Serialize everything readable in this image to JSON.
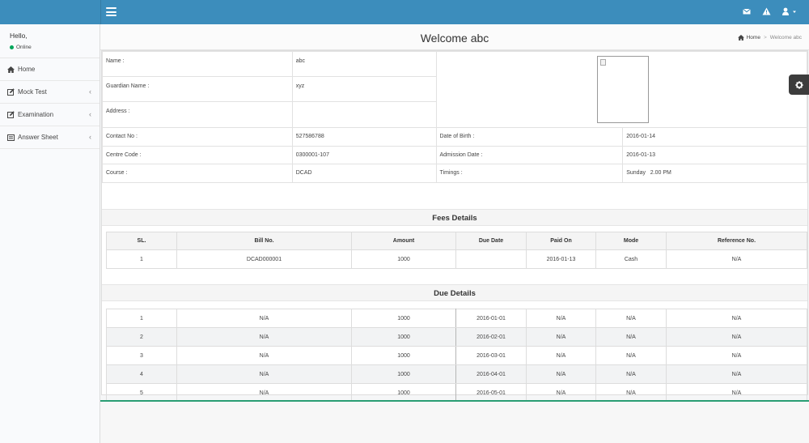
{
  "user": {
    "greeting": "Hello,",
    "status": "Online"
  },
  "sidebar": {
    "items": [
      {
        "label": "Home",
        "icon": "home-icon"
      },
      {
        "label": "Mock Test",
        "icon": "edit-icon",
        "has_submenu": true
      },
      {
        "label": "Examination",
        "icon": "edit-icon",
        "has_submenu": true
      },
      {
        "label": "Answer Sheet",
        "icon": "list-icon",
        "has_submenu": true
      }
    ]
  },
  "header": {
    "title": "Welcome  abc"
  },
  "breadcrumb": {
    "home": "Home",
    "current": "Welcome abc"
  },
  "profile": {
    "name_label": "Name :",
    "name": "abc",
    "guardian_label": "Guardian Name :",
    "guardian": "xyz",
    "address_label": "Address :",
    "address": "",
    "contact_label": "Contact No :",
    "contact": "527586788",
    "dob_label": "Date of Birth :",
    "dob": "2016-01-14",
    "centre_label": "Centre Code :",
    "centre": "0300001-107",
    "admission_label": "Admission Date :",
    "admission": "2016-01-13",
    "course_label": "Course :",
    "course": "DCAD",
    "timings_label": "Timings :",
    "timings": "Sunday   2.00 PM"
  },
  "fees": {
    "title": "Fees Details",
    "columns": [
      "SL.",
      "Bill No.",
      "Amount",
      "Due Date",
      "Paid On",
      "Mode",
      "Reference No."
    ],
    "rows": [
      [
        "1",
        "DCAD000001",
        "1000",
        "",
        "2016-01-13",
        "Cash",
        "N/A"
      ]
    ]
  },
  "dues": {
    "title": "Due Details",
    "rows": [
      [
        "1",
        "N/A",
        "1000",
        "2016-01-01",
        "N/A",
        "N/A",
        "N/A"
      ],
      [
        "2",
        "N/A",
        "1000",
        "2016-02-01",
        "N/A",
        "N/A",
        "N/A"
      ],
      [
        "3",
        "N/A",
        "1000",
        "2016-03-01",
        "N/A",
        "N/A",
        "N/A"
      ],
      [
        "4",
        "N/A",
        "1000",
        "2016-04-01",
        "N/A",
        "N/A",
        "N/A"
      ],
      [
        "5",
        "N/A",
        "1000",
        "2016-05-01",
        "N/A",
        "N/A",
        "N/A"
      ]
    ]
  },
  "colors": {
    "primary": "#3c8dbc",
    "online": "#00a65a",
    "footer_accent": "#2a9e74"
  }
}
